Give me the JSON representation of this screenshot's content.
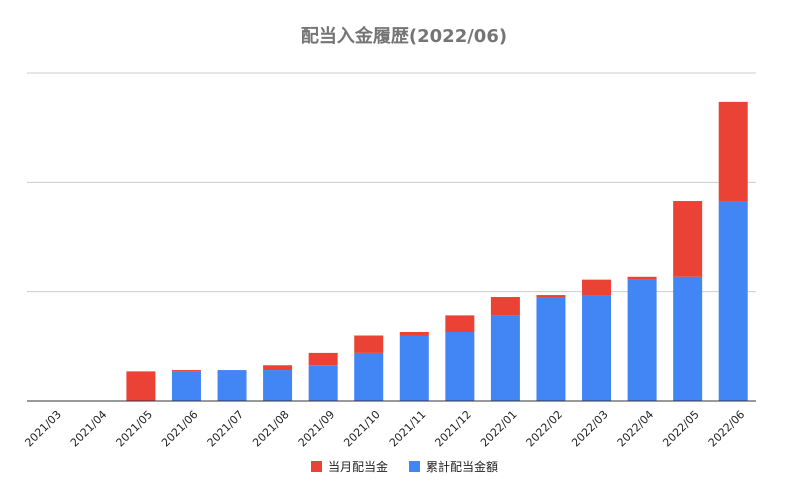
{
  "chart_data": {
    "type": "bar",
    "stacked": true,
    "title": "配当入金履歴(2022/06)",
    "xlabel": "",
    "ylabel": "",
    "grid": true,
    "legend_position": "bottom",
    "y_tick_labels_shown": false,
    "categories": [
      "2021/03",
      "2021/04",
      "2021/05",
      "2021/06",
      "2021/07",
      "2021/08",
      "2021/09",
      "2021/10",
      "2021/11",
      "2021/12",
      "2022/01",
      "2022/02",
      "2022/03",
      "2022/04",
      "2022/05",
      "2022/06"
    ],
    "ylim": [
      0,
      3000
    ],
    "series": [
      {
        "name": "累計配当金額",
        "color": "#4285f4",
        "values": [
          0,
          0,
          0,
          271,
          283,
          283,
          327,
          440,
          599,
          631,
          783,
          951,
          969,
          1110,
          1136,
          1829
        ]
      },
      {
        "name": "当月配当金",
        "color": "#ea4335",
        "values": [
          0,
          0,
          271,
          12,
          0,
          44,
          113,
          159,
          32,
          152,
          168,
          18,
          141,
          26,
          693,
          907
        ]
      }
    ],
    "legend": [
      {
        "name": "当月配当金",
        "color": "#ea4335"
      },
      {
        "name": "累計配当金額",
        "color": "#4285f4"
      }
    ]
  }
}
